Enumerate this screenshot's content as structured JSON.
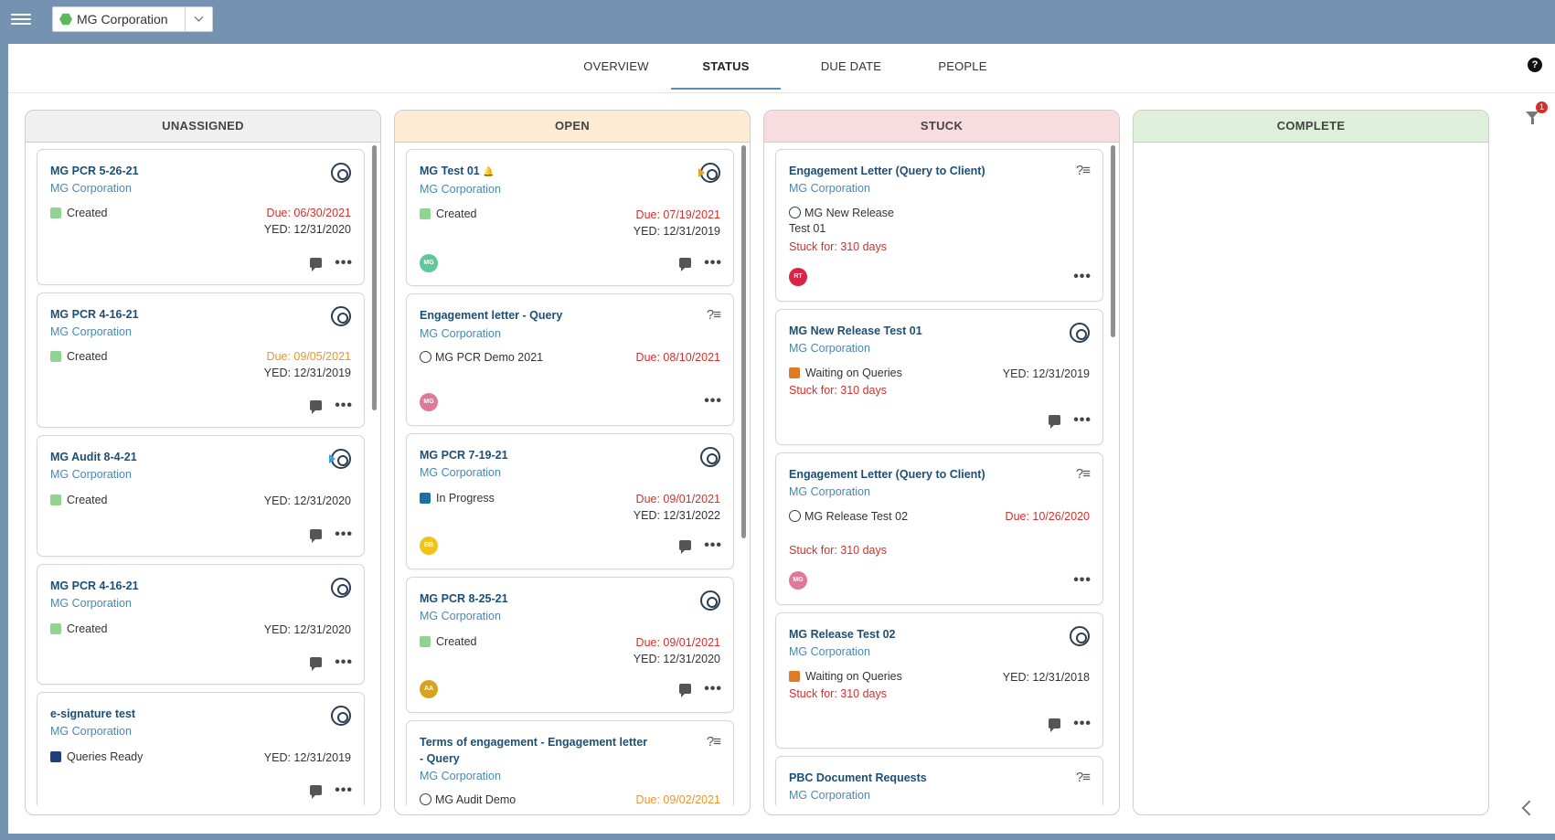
{
  "header": {
    "org_name": "MG Corporation"
  },
  "tabs": [
    {
      "label": "OVERVIEW"
    },
    {
      "label": "STATUS"
    },
    {
      "label": "DUE DATE"
    },
    {
      "label": "PEOPLE"
    }
  ],
  "help_label": "?",
  "filter_badge": "1",
  "columns": [
    {
      "title": "UNASSIGNED",
      "color": "#f0f0f0"
    },
    {
      "title": "OPEN",
      "color": "#fdebd3"
    },
    {
      "title": "STUCK",
      "color": "#f8dde0"
    },
    {
      "title": "COMPLETE",
      "color": "#dff0da"
    }
  ],
  "cards": {
    "unassigned": [
      {
        "title": "MG PCR 5-26-21",
        "client": "MG Corporation",
        "status": "Created",
        "status_color": "#8fd58f",
        "due": "Due: 06/30/2021",
        "yed": "YED: 12/31/2020"
      },
      {
        "title": "MG PCR 4-16-21",
        "client": "MG Corporation",
        "status": "Created",
        "status_color": "#8fd58f",
        "due": "Due: 09/05/2021",
        "yed": "YED: 12/31/2019"
      },
      {
        "title": "MG Audit 8-4-21",
        "client": "MG Corporation",
        "status": "Created",
        "status_color": "#8fd58f",
        "yed": "YED: 12/31/2020"
      },
      {
        "title": "MG PCR 4-16-21",
        "client": "MG Corporation",
        "status": "Created",
        "status_color": "#8fd58f",
        "yed": "YED: 12/31/2020"
      },
      {
        "title": "e-signature test",
        "client": "MG Corporation",
        "status": "Queries Ready",
        "status_color": "#1f3f7a",
        "yed": "YED: 12/31/2019"
      }
    ],
    "open": [
      {
        "title": "MG Test 01",
        "bell": "🔔",
        "client": "MG Corporation",
        "status": "Created",
        "status_color": "#8fd58f",
        "due": "Due: 07/19/2021",
        "yed": "YED: 12/31/2019",
        "avatar": "MG",
        "avatar_color": "#5cc99a"
      },
      {
        "title": "Engagement letter - Query",
        "client": "MG Corporation",
        "project": "MG PCR Demo 2021",
        "due": "Due: 08/10/2021",
        "avatar": "MG",
        "avatar_color": "#e0789a"
      },
      {
        "title": "MG PCR 7-19-21",
        "client": "MG Corporation",
        "status": "In Progress",
        "status_color": "#1c6fa5",
        "due": "Due: 09/01/2021",
        "yed": "YED: 12/31/2022",
        "avatar": "BB",
        "avatar_color": "#f2c21a"
      },
      {
        "title": "MG PCR 8-25-21",
        "client": "MG Corporation",
        "status": "Created",
        "status_color": "#8fd58f",
        "due": "Due: 09/01/2021",
        "yed": "YED: 12/31/2020",
        "avatar": "AA",
        "avatar_color": "#d9a21c"
      },
      {
        "title": "Terms of engagement - Engagement letter - Query",
        "client": "MG Corporation",
        "project": "MG Audit Demo",
        "due": "Due: 09/02/2021"
      }
    ],
    "stuck": [
      {
        "title": "Engagement Letter (Query to Client)",
        "client": "MG Corporation",
        "project": "MG New Release Test 01",
        "stuck": "Stuck for: 310 days",
        "avatar": "RT",
        "avatar_color": "#d92447"
      },
      {
        "title": "MG New Release Test 01",
        "client": "MG Corporation",
        "status": "Waiting on Queries",
        "status_color": "#e07a25",
        "yed": "YED: 12/31/2019",
        "stuck": "Stuck for: 310 days"
      },
      {
        "title": "Engagement Letter (Query to Client)",
        "client": "MG Corporation",
        "project": "MG Release Test 02",
        "due": "Due: 10/26/2020",
        "stuck": "Stuck for: 310 days",
        "avatar": "MG",
        "avatar_color": "#e0789a"
      },
      {
        "title": "MG Release Test 02",
        "client": "MG Corporation",
        "status": "Waiting on Queries",
        "status_color": "#e07a25",
        "yed": "YED: 12/31/2018",
        "stuck": "Stuck for: 310 days"
      },
      {
        "title": "PBC Document Requests",
        "client": "MG Corporation"
      }
    ]
  },
  "icons": {
    "menu": "menu-icon",
    "workflow": "workflow-icon",
    "query": "query-list-icon",
    "comment": "comment-icon",
    "more": "more-icon",
    "filter": "filter-icon",
    "collapse": "chevron-left-icon"
  }
}
